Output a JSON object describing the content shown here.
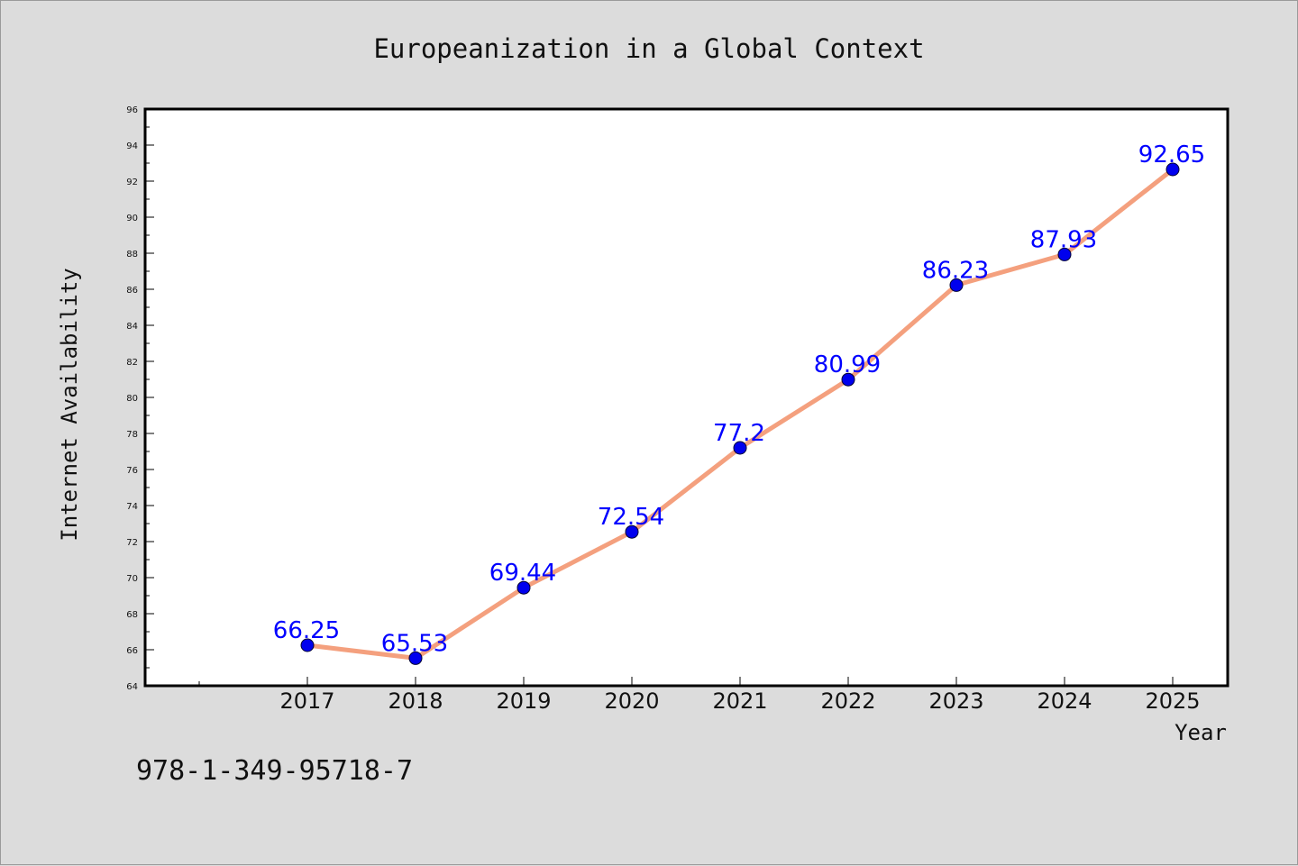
{
  "chart_data": {
    "type": "line",
    "title": "Europeanization in a Global Context",
    "xlabel": "Year",
    "ylabel": "Internet Availability",
    "x": [
      "2017",
      "2018",
      "2019",
      "2020",
      "2021",
      "2022",
      "2023",
      "2024",
      "2025"
    ],
    "series": [
      {
        "values": [
          66.25,
          65.53,
          69.44,
          72.54,
          77.2,
          80.99,
          86.23,
          87.93,
          92.65
        ]
      }
    ],
    "data_labels": [
      "66.25",
      "65.53",
      "69.44",
      "72.54",
      "77.2",
      "80.99",
      "86.23",
      "87.93",
      "92.65"
    ],
    "yticks": [
      "64",
      "66",
      "68",
      "70",
      "72",
      "74",
      "76",
      "78",
      "80",
      "82",
      "84",
      "86",
      "88",
      "90",
      "92",
      "94",
      "96"
    ],
    "ylim": [
      64,
      96
    ],
    "grid": false,
    "legend": "none",
    "colors": {
      "line": "#f4a07e",
      "marker": "#0000ee",
      "label": "#0000ff",
      "background": "#dcdcdc",
      "plot_area": "#ffffff"
    }
  },
  "footer_text": "978-1-349-95718-7"
}
